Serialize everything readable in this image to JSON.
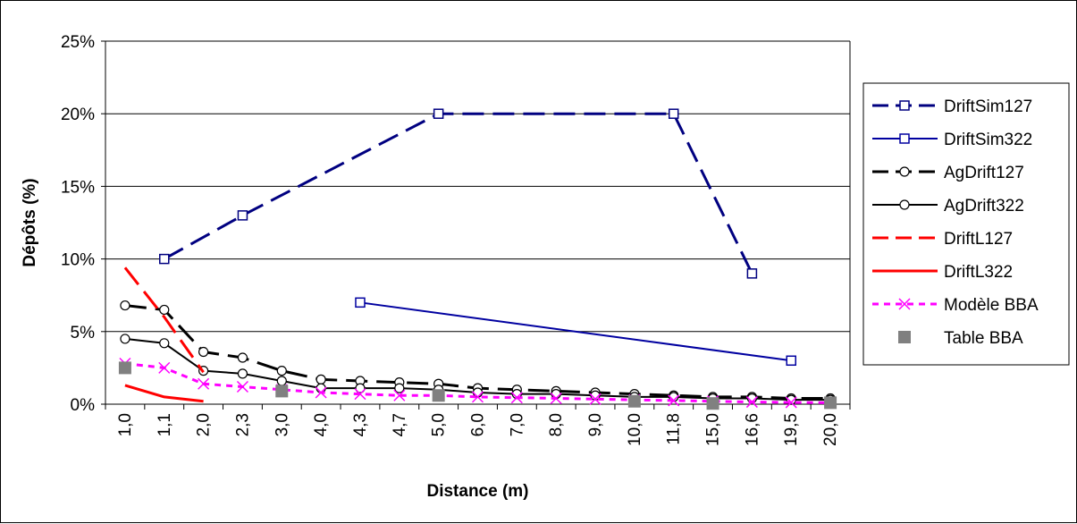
{
  "chart_data": {
    "type": "line",
    "title": "",
    "xlabel": "Distance (m)",
    "ylabel": "Dépôts (%)",
    "categories": [
      "1,0",
      "1,1",
      "2,0",
      "2,3",
      "3,0",
      "4,0",
      "4,3",
      "4,7",
      "5,0",
      "6,0",
      "7,0",
      "8,0",
      "9,0",
      "10,0",
      "11,8",
      "15,0",
      "16,6",
      "19,5",
      "20,0"
    ],
    "y_ticks": [
      "0%",
      "5%",
      "10%",
      "15%",
      "20%",
      "25%"
    ],
    "ylim": [
      0,
      25
    ],
    "grid": "horizontal",
    "legend_position": "right",
    "series": [
      {
        "name": "DriftSim127",
        "color": "#000080",
        "line": "dashed",
        "width": 3,
        "marker": "square",
        "values": [
          null,
          10,
          null,
          13,
          null,
          null,
          null,
          null,
          20,
          null,
          null,
          null,
          null,
          null,
          20,
          null,
          9,
          null,
          null
        ]
      },
      {
        "name": "DriftSim322",
        "color": "#0000a0",
        "line": "solid",
        "width": 2,
        "marker": "square",
        "values": [
          null,
          null,
          null,
          null,
          null,
          null,
          7,
          null,
          null,
          null,
          null,
          null,
          null,
          null,
          null,
          null,
          null,
          3,
          null
        ]
      },
      {
        "name": "AgDrift127",
        "color": "#000000",
        "line": "dashed",
        "width": 3,
        "marker": "circle",
        "values": [
          6.8,
          6.5,
          3.6,
          3.2,
          2.3,
          1.7,
          1.6,
          1.5,
          1.4,
          1.1,
          1.0,
          0.9,
          0.8,
          0.7,
          0.6,
          0.5,
          0.5,
          0.4,
          0.4
        ]
      },
      {
        "name": "AgDrift322",
        "color": "#000000",
        "line": "solid",
        "width": 2,
        "marker": "circle",
        "values": [
          4.5,
          4.2,
          2.3,
          2.1,
          1.6,
          1.1,
          1.1,
          1.1,
          1.0,
          0.8,
          0.7,
          0.7,
          0.6,
          0.5,
          0.5,
          0.4,
          0.4,
          0.3,
          0.3
        ]
      },
      {
        "name": "DriftL127",
        "color": "#ff0000",
        "line": "dashed",
        "width": 3,
        "marker": "none",
        "values": [
          9.4,
          6.0,
          2.2,
          null,
          null,
          null,
          null,
          null,
          null,
          null,
          null,
          null,
          null,
          null,
          null,
          null,
          null,
          null,
          null
        ]
      },
      {
        "name": "DriftL322",
        "color": "#ff0000",
        "line": "solid",
        "width": 3,
        "marker": "none",
        "values": [
          1.3,
          0.5,
          0.2,
          null,
          null,
          null,
          null,
          null,
          null,
          null,
          null,
          null,
          null,
          null,
          null,
          null,
          null,
          null,
          null
        ]
      },
      {
        "name": "Modèle BBA",
        "color": "#ff00ff",
        "line": "dotted",
        "width": 3,
        "marker": "x",
        "values": [
          2.8,
          2.5,
          1.4,
          1.2,
          1.0,
          0.8,
          0.7,
          0.6,
          0.6,
          0.5,
          0.45,
          0.4,
          0.35,
          0.3,
          0.25,
          0.2,
          0.15,
          0.12,
          0.1
        ]
      },
      {
        "name": "Table BBA",
        "color": "#808080",
        "line": "none",
        "width": 0,
        "marker": "filled-square",
        "values": [
          2.5,
          null,
          null,
          null,
          0.9,
          null,
          null,
          null,
          0.6,
          null,
          null,
          null,
          null,
          0.2,
          null,
          0.05,
          null,
          null,
          0.1
        ]
      }
    ]
  }
}
